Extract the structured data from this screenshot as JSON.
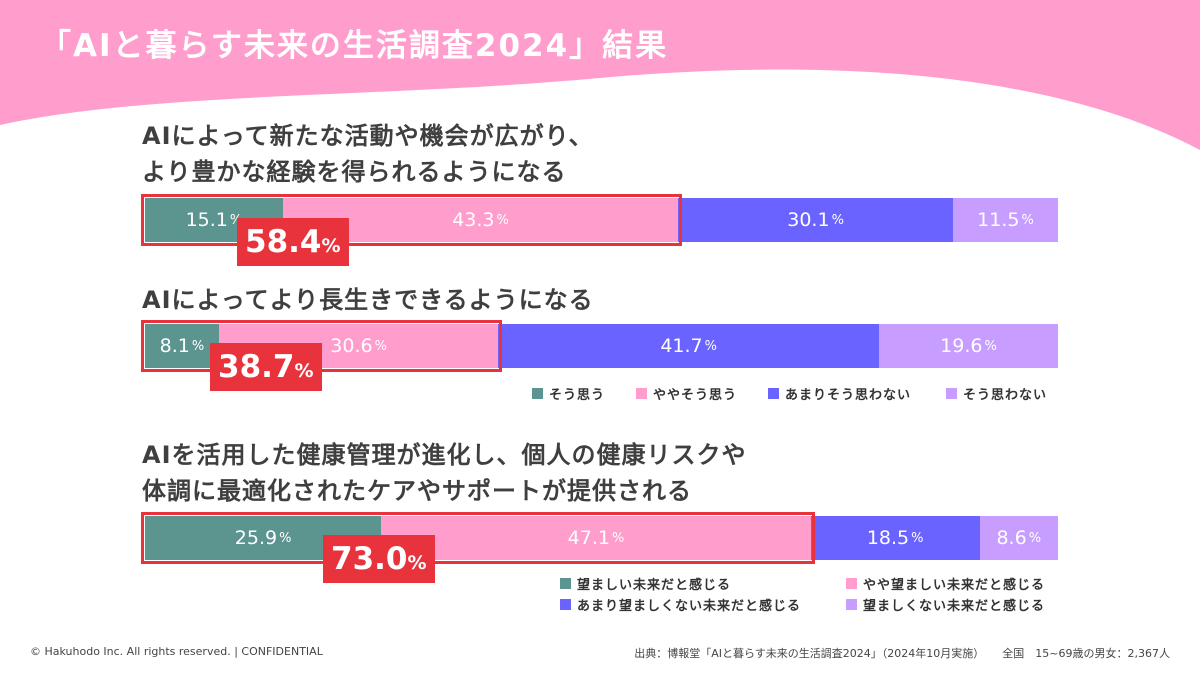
{
  "slide": {
    "title": "「AIと暮らす未来の生活調査2024」結果",
    "footer_left": "© Hakuhodo Inc. All rights reserved. | CONFIDENTIAL",
    "footer_source": "出典：博報堂「AIと暮らす未来の生活調査2024」（2024年10月実施）",
    "footer_sample": "全国　15~69歳の男女：2,367人"
  },
  "colors": {
    "header_pink": "#ff9dcc",
    "seg_teal": "#5c9490",
    "seg_pink": "#ff9dcc",
    "seg_blue": "#6b63ff",
    "seg_lavender": "#c79dff",
    "highlight_red": "#e8333d"
  },
  "chart_data": [
    {
      "type": "bar",
      "orientation": "horizontal-stacked-100",
      "title_lines": [
        "AIによって新たな活動や機会が広がり、",
        "より豊かな経験を得られるようになる"
      ],
      "categories": [
        "そう思う",
        "ややそう思う",
        "あまりそう思わない",
        "そう思わない"
      ],
      "values": [
        15.1,
        43.3,
        30.1,
        11.5
      ],
      "value_labels": [
        "15.1",
        "43.3",
        "30.1",
        "11.5"
      ],
      "unit": "%",
      "highlight": {
        "label": "58.4",
        "unit": "%",
        "segments": 2
      }
    },
    {
      "type": "bar",
      "orientation": "horizontal-stacked-100",
      "title_lines": [
        "AIによってより長生きできるようになる"
      ],
      "categories": [
        "そう思う",
        "ややそう思う",
        "あまりそう思わない",
        "そう思わない"
      ],
      "values": [
        8.1,
        30.6,
        41.7,
        19.6
      ],
      "value_labels": [
        "8.1",
        "30.6",
        "41.7",
        "19.6"
      ],
      "unit": "%",
      "highlight": {
        "label": "38.7",
        "unit": "%",
        "segments": 2
      },
      "legend": [
        "そう思う",
        "ややそう思う",
        "あまりそう思わない",
        "そう思わない"
      ]
    },
    {
      "type": "bar",
      "orientation": "horizontal-stacked-100",
      "title_lines": [
        "AIを活用した健康管理が進化し、個人の健康リスクや",
        "体調に最適化されたケアやサポートが提供される"
      ],
      "categories": [
        "望ましい未来だと感じる",
        "やや望ましい未来だと感じる",
        "あまり望ましくない未来だと感じる",
        "望ましくない未来だと感じる"
      ],
      "values": [
        25.9,
        47.1,
        18.5,
        8.6
      ],
      "value_labels": [
        "25.9",
        "47.1",
        "18.5",
        "8.6"
      ],
      "unit": "%",
      "highlight": {
        "label": "73.0",
        "unit": "%",
        "segments": 2
      },
      "legend": [
        "望ましい未来だと感じる",
        "やや望ましい未来だと感じる",
        "あまり望ましくない未来だと感じる",
        "望ましくない未来だと感じる"
      ]
    }
  ]
}
